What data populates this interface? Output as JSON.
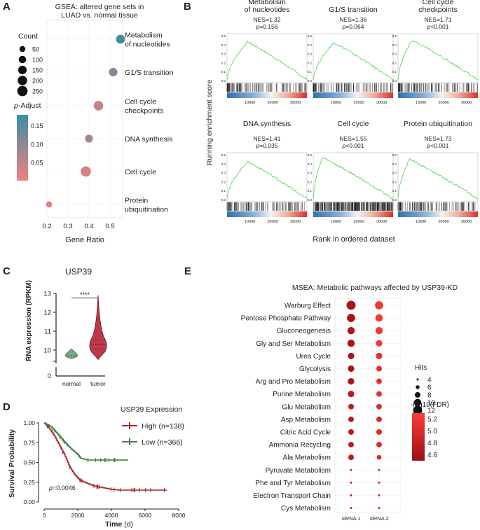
{
  "panel_labels": {
    "a": "A",
    "b": "B",
    "c": "C",
    "d": "D",
    "e": "E"
  },
  "chart_data": [
    {
      "panel": "A",
      "type": "scatter",
      "title": "GSEA: altered gene sets in LUAD vs. normal tissue",
      "title_lines": [
        "GSEA: altered gene sets in",
        "LUAD vs. normal tissue"
      ],
      "xlabel": "Gene Ratio",
      "xlim": [
        0.2,
        0.56
      ],
      "xticks": [
        0.2,
        0.3,
        0.4,
        0.5
      ],
      "xtick_labels": [
        "0.2",
        "0.3",
        "0.4",
        "0.5"
      ],
      "size_legend": {
        "title": "Count",
        "values": [
          50,
          100,
          150,
          200,
          250
        ],
        "labels": [
          "50",
          "100",
          "150",
          "200",
          "250"
        ]
      },
      "color_legend": {
        "title_prefix": "p",
        "title_suffix": "-Adjust",
        "range": [
          0.0,
          0.18
        ],
        "ticks": [
          0.15,
          0.1,
          0.05
        ],
        "tick_labels": [
          "0.15",
          "0.10",
          "0.05"
        ],
        "colors": [
          "#3a8fa6",
          "#f28080"
        ]
      },
      "points": [
        {
          "label_lines": [
            "Metabolism",
            "of nucleotides"
          ],
          "x": 0.55,
          "count": 110,
          "padj": 0.17
        },
        {
          "label_lines": [
            "G1/S transition"
          ],
          "x": 0.515,
          "count": 95,
          "padj": 0.11
        },
        {
          "label_lines": [
            "Cell cycle",
            "checkpoints"
          ],
          "x": 0.445,
          "count": 135,
          "padj": 0.04
        },
        {
          "label_lines": [
            "DNA synthesis"
          ],
          "x": 0.4,
          "count": 75,
          "padj": 0.08
        },
        {
          "label_lines": [
            "Cell cycle"
          ],
          "x": 0.385,
          "count": 160,
          "padj": 0.03
        },
        {
          "label_lines": [
            "Protein",
            "ubiquitination"
          ],
          "x": 0.21,
          "count": 35,
          "padj": 0.02
        }
      ]
    },
    {
      "panel": "B",
      "type": "line",
      "ylabel": "Running enrichment score",
      "xlabel": "Rank in ordered dataset",
      "x_ticks": [
        10000,
        20000,
        30000
      ],
      "x_tick_labels": [
        "10000",
        "20000",
        "30000"
      ],
      "plots": [
        {
          "title_lines": [
            "Metabolism",
            "of nucleotides"
          ],
          "nes": "NES=1.32",
          "p_prefix": "p",
          "p_suffix": "=0.156",
          "y_ticks": [
            "0.5",
            "0.4",
            "0.3",
            "0.2",
            "0.1",
            "0.0"
          ],
          "peak_rank": 9000,
          "peak_es": 0.48
        },
        {
          "title_lines": [
            "G1/S transition"
          ],
          "nes": "NES=1.36",
          "p_prefix": "p",
          "p_suffix": "=0.064",
          "y_ticks": [
            "0.5",
            "0.4",
            "0.3",
            "0.2",
            "0.1",
            "0.0"
          ],
          "peak_rank": 9000,
          "peak_es": 0.47
        },
        {
          "title_lines": [
            "Cell cycle",
            "checkpoints"
          ],
          "nes": "NES=1.71",
          "p_prefix": "p",
          "p_suffix": "<0.001",
          "y_ticks": [
            "0.5",
            "0.4",
            "0.3",
            "0.2",
            "0.1",
            "0.0"
          ],
          "peak_rank": 6000,
          "peak_es": 0.5
        },
        {
          "title_lines": [
            "DNA synthesis"
          ],
          "nes": "NES=1.41",
          "p_prefix": "p",
          "p_suffix": "=0.035",
          "y_ticks": [
            "0.5",
            "0.4",
            "0.3",
            "0.2",
            "0.1",
            "0.0"
          ],
          "peak_rank": 9000,
          "peak_es": 0.47
        },
        {
          "title_lines": [
            "Cell cycle"
          ],
          "nes": "NES=1.55",
          "p_prefix": "p",
          "p_suffix": "<0.001",
          "y_ticks": [
            "0.5",
            "0.4",
            "0.3",
            "0.2",
            "0.1",
            "0.0"
          ],
          "peak_rank": 4000,
          "peak_es": 0.52
        },
        {
          "title_lines": [
            "Protein ubiquitination"
          ],
          "nes": "NES=1.73",
          "p_prefix": "p",
          "p_suffix": "<0.001",
          "y_ticks": [
            "0.5",
            "0.4",
            "0.3",
            "0.2",
            "0.1",
            "0.0"
          ],
          "peak_rank": 5000,
          "peak_es": 0.5
        }
      ]
    },
    {
      "panel": "C",
      "type": "violin",
      "title": "USP39",
      "ylabel": "RNA expression (RPKM)",
      "yticks": [
        10,
        11,
        12,
        13
      ],
      "ytick_labels": [
        "10",
        "11",
        "12",
        "13"
      ],
      "extra_tick": "0",
      "categories": [
        "normal",
        "tumor"
      ],
      "medians": [
        9.7,
        10.3
      ],
      "ranges": [
        [
          9.55,
          10.05
        ],
        [
          9.5,
          12.9
        ]
      ],
      "significance": "****",
      "colors": [
        "#7aab8b",
        "#c0394a"
      ]
    },
    {
      "panel": "D",
      "type": "line",
      "ylabel": "Survival Probability",
      "xlabel_main": "Time",
      "xlabel_unit": " (d)",
      "xticks": [
        0,
        2000,
        4000,
        6000,
        8000
      ],
      "xtick_labels": [
        "0",
        "2000",
        "4000",
        "6000",
        "8000"
      ],
      "yticks": [
        0.0,
        0.25,
        0.5,
        0.75,
        1.0
      ],
      "ytick_labels": [
        "0.00",
        "0.25",
        "0.50",
        "0.75",
        "1.00"
      ],
      "legend_title": "USP39 Expression",
      "pvalue_prefix": "p",
      "pvalue_suffix": "=0.0046",
      "series": [
        {
          "name": "High (n=138)",
          "color": "#a8282a",
          "points": [
            [
              0,
              1.0
            ],
            [
              300,
              0.93
            ],
            [
              600,
              0.84
            ],
            [
              900,
              0.72
            ],
            [
              1200,
              0.6
            ],
            [
              1500,
              0.45
            ],
            [
              1800,
              0.35
            ],
            [
              2100,
              0.28
            ],
            [
              2500,
              0.24
            ],
            [
              3000,
              0.2
            ],
            [
              3500,
              0.18
            ],
            [
              4000,
              0.16
            ],
            [
              4500,
              0.15
            ],
            [
              7300,
              0.15
            ]
          ]
        },
        {
          "name": "Low (n=366)",
          "color": "#4a7a4a",
          "points": [
            [
              0,
              1.0
            ],
            [
              400,
              0.95
            ],
            [
              800,
              0.86
            ],
            [
              1200,
              0.76
            ],
            [
              1600,
              0.67
            ],
            [
              2000,
              0.6
            ],
            [
              2200,
              0.55
            ],
            [
              2600,
              0.53
            ],
            [
              5000,
              0.53
            ]
          ]
        }
      ]
    },
    {
      "panel": "E",
      "type": "scatter",
      "title": "MSEA: Metabolic pathways affected by USP39-KD",
      "categories": [
        "siRNA 1",
        "siRNA 2"
      ],
      "size_legend": {
        "title": "Hits",
        "values": [
          4,
          6,
          8,
          10,
          12
        ],
        "labels": [
          "4",
          "6",
          "8",
          "10",
          "12"
        ]
      },
      "color_legend": {
        "title": "-log10(FDR)",
        "range": [
          4.5,
          5.3
        ],
        "ticks": [
          5.2,
          5.0,
          4.8,
          4.6
        ],
        "tick_labels": [
          "5.2",
          "5.0",
          "4.8",
          "4.6"
        ],
        "colors": [
          "#ff3b3b",
          "#9e1010"
        ]
      },
      "pathways": [
        "Warburg Effect",
        "Pentose Phosphate Pathway",
        "Gluconeogenesis",
        "Gly and Ser Metabolism",
        "Urea Cycle",
        "Glycolysis",
        "Arg and Pro Metabolism",
        "Purine Metabolism",
        "Glu Metabolism",
        "Asp Metabolism",
        "Citric Acid Cycle",
        "Ammonia Recycling",
        "Ala Metabolism",
        "Pyruvate Metabolism",
        "Phe and Tyr Metabolism",
        "Electron Transport Chain",
        "Cys Metabolism"
      ],
      "hits_sirna1": [
        12,
        11,
        10,
        10,
        9,
        9,
        9,
        9,
        8,
        8,
        8,
        8,
        8,
        4,
        4,
        4,
        4
      ],
      "fdr_sirna1": [
        4.6,
        4.6,
        4.6,
        4.6,
        4.6,
        4.6,
        4.6,
        4.7,
        4.7,
        4.7,
        4.7,
        4.7,
        4.7,
        4.8,
        4.8,
        4.8,
        4.8
      ],
      "hits_sirna2": [
        11,
        10,
        10,
        9,
        9,
        8,
        8,
        8,
        8,
        8,
        8,
        8,
        7,
        4,
        4,
        4,
        4
      ],
      "fdr_sirna2": [
        5.2,
        5.2,
        5.2,
        5.2,
        5.1,
        5.1,
        5.1,
        5.1,
        5.0,
        5.0,
        5.0,
        5.0,
        5.0,
        4.9,
        4.9,
        4.9,
        4.9
      ]
    }
  ]
}
